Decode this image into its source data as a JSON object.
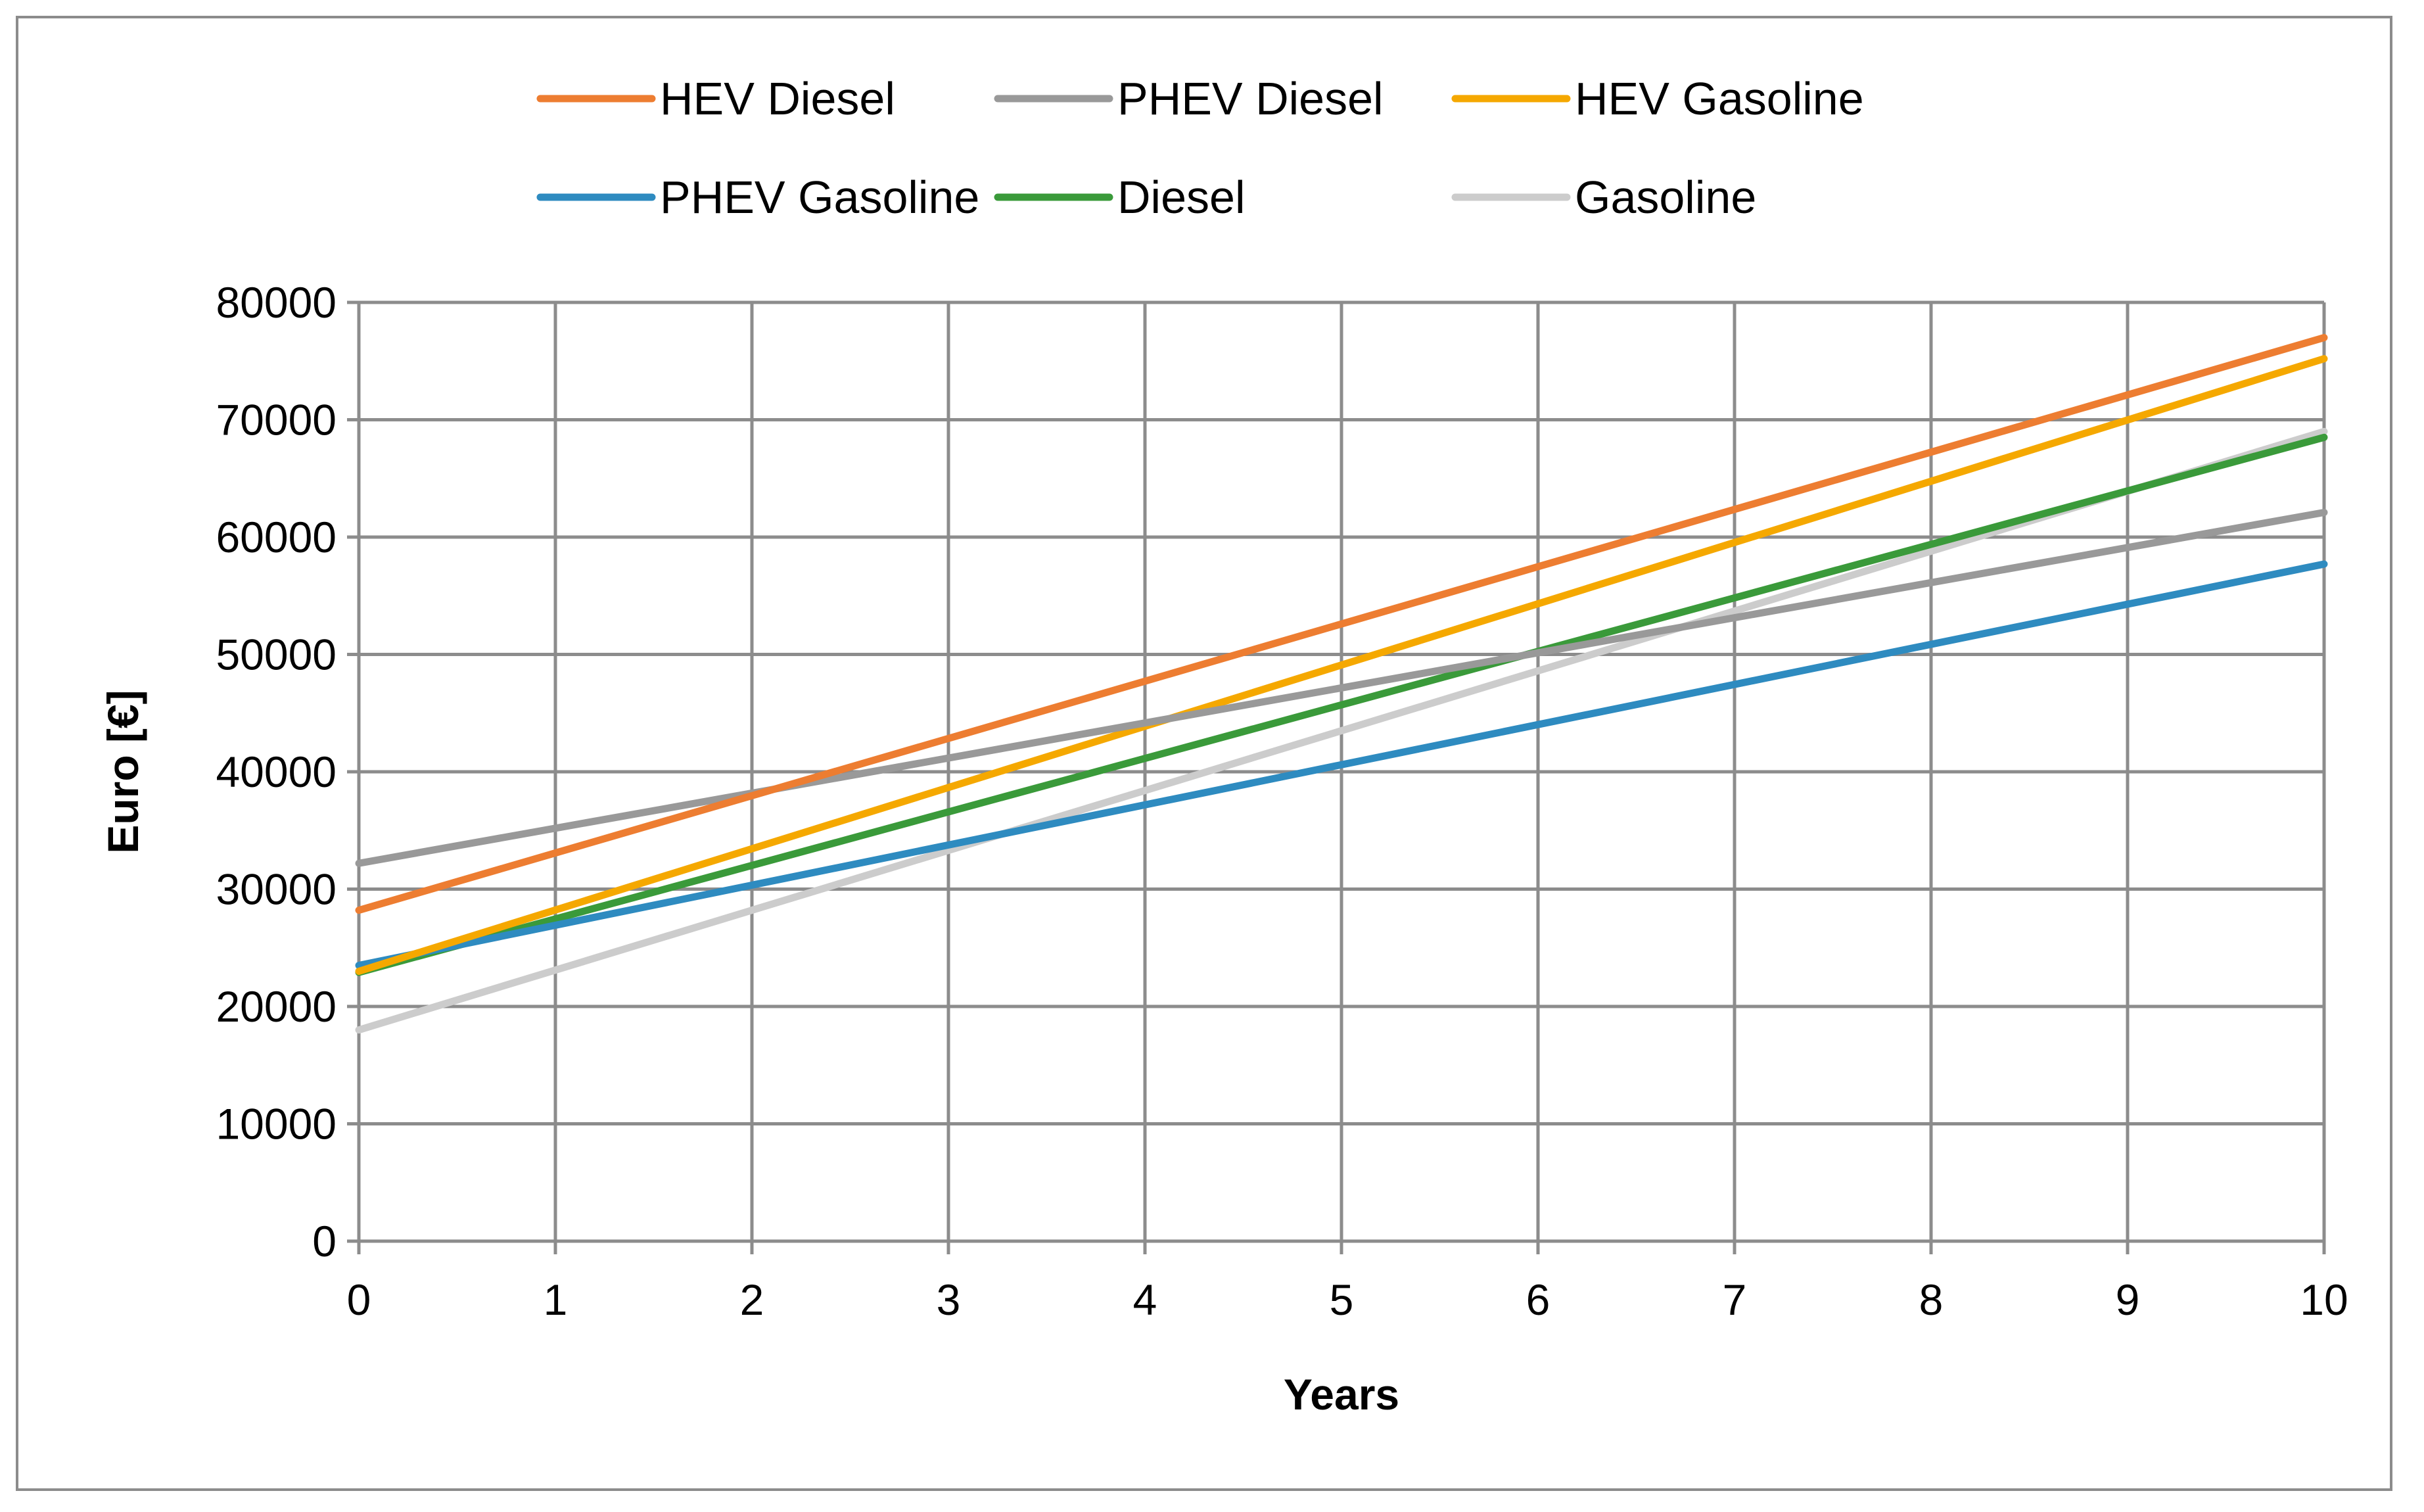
{
  "chart_data": {
    "type": "line",
    "title": "",
    "xlabel": "Years",
    "ylabel": "Euro [€]",
    "xlim": [
      0,
      10
    ],
    "ylim": [
      0,
      80000
    ],
    "x": [
      0,
      10
    ],
    "x_ticks": [
      "0",
      "1",
      "2",
      "3",
      "4",
      "5",
      "6",
      "7",
      "8",
      "9",
      "10"
    ],
    "y_ticks": [
      "0",
      "10000",
      "20000",
      "30000",
      "40000",
      "50000",
      "60000",
      "70000",
      "80000"
    ],
    "grid": true,
    "legend_position": "top",
    "series": [
      {
        "name": "HEV Diesel",
        "color": "#ED7D31",
        "values": [
          28200,
          77000
        ]
      },
      {
        "name": "PHEV Diesel",
        "color": "#999999",
        "values": [
          32200,
          62100
        ]
      },
      {
        "name": "HEV Gasoline",
        "color": "#F5A800",
        "values": [
          23000,
          75200
        ]
      },
      {
        "name": "PHEV Gasoline",
        "color": "#2E8BC0",
        "values": [
          23500,
          57700
        ]
      },
      {
        "name": "Diesel",
        "color": "#3A9A3A",
        "values": [
          22900,
          68500
        ]
      },
      {
        "name": "Gasoline",
        "color": "#CCCCCC",
        "values": [
          18000,
          69000
        ]
      }
    ]
  }
}
